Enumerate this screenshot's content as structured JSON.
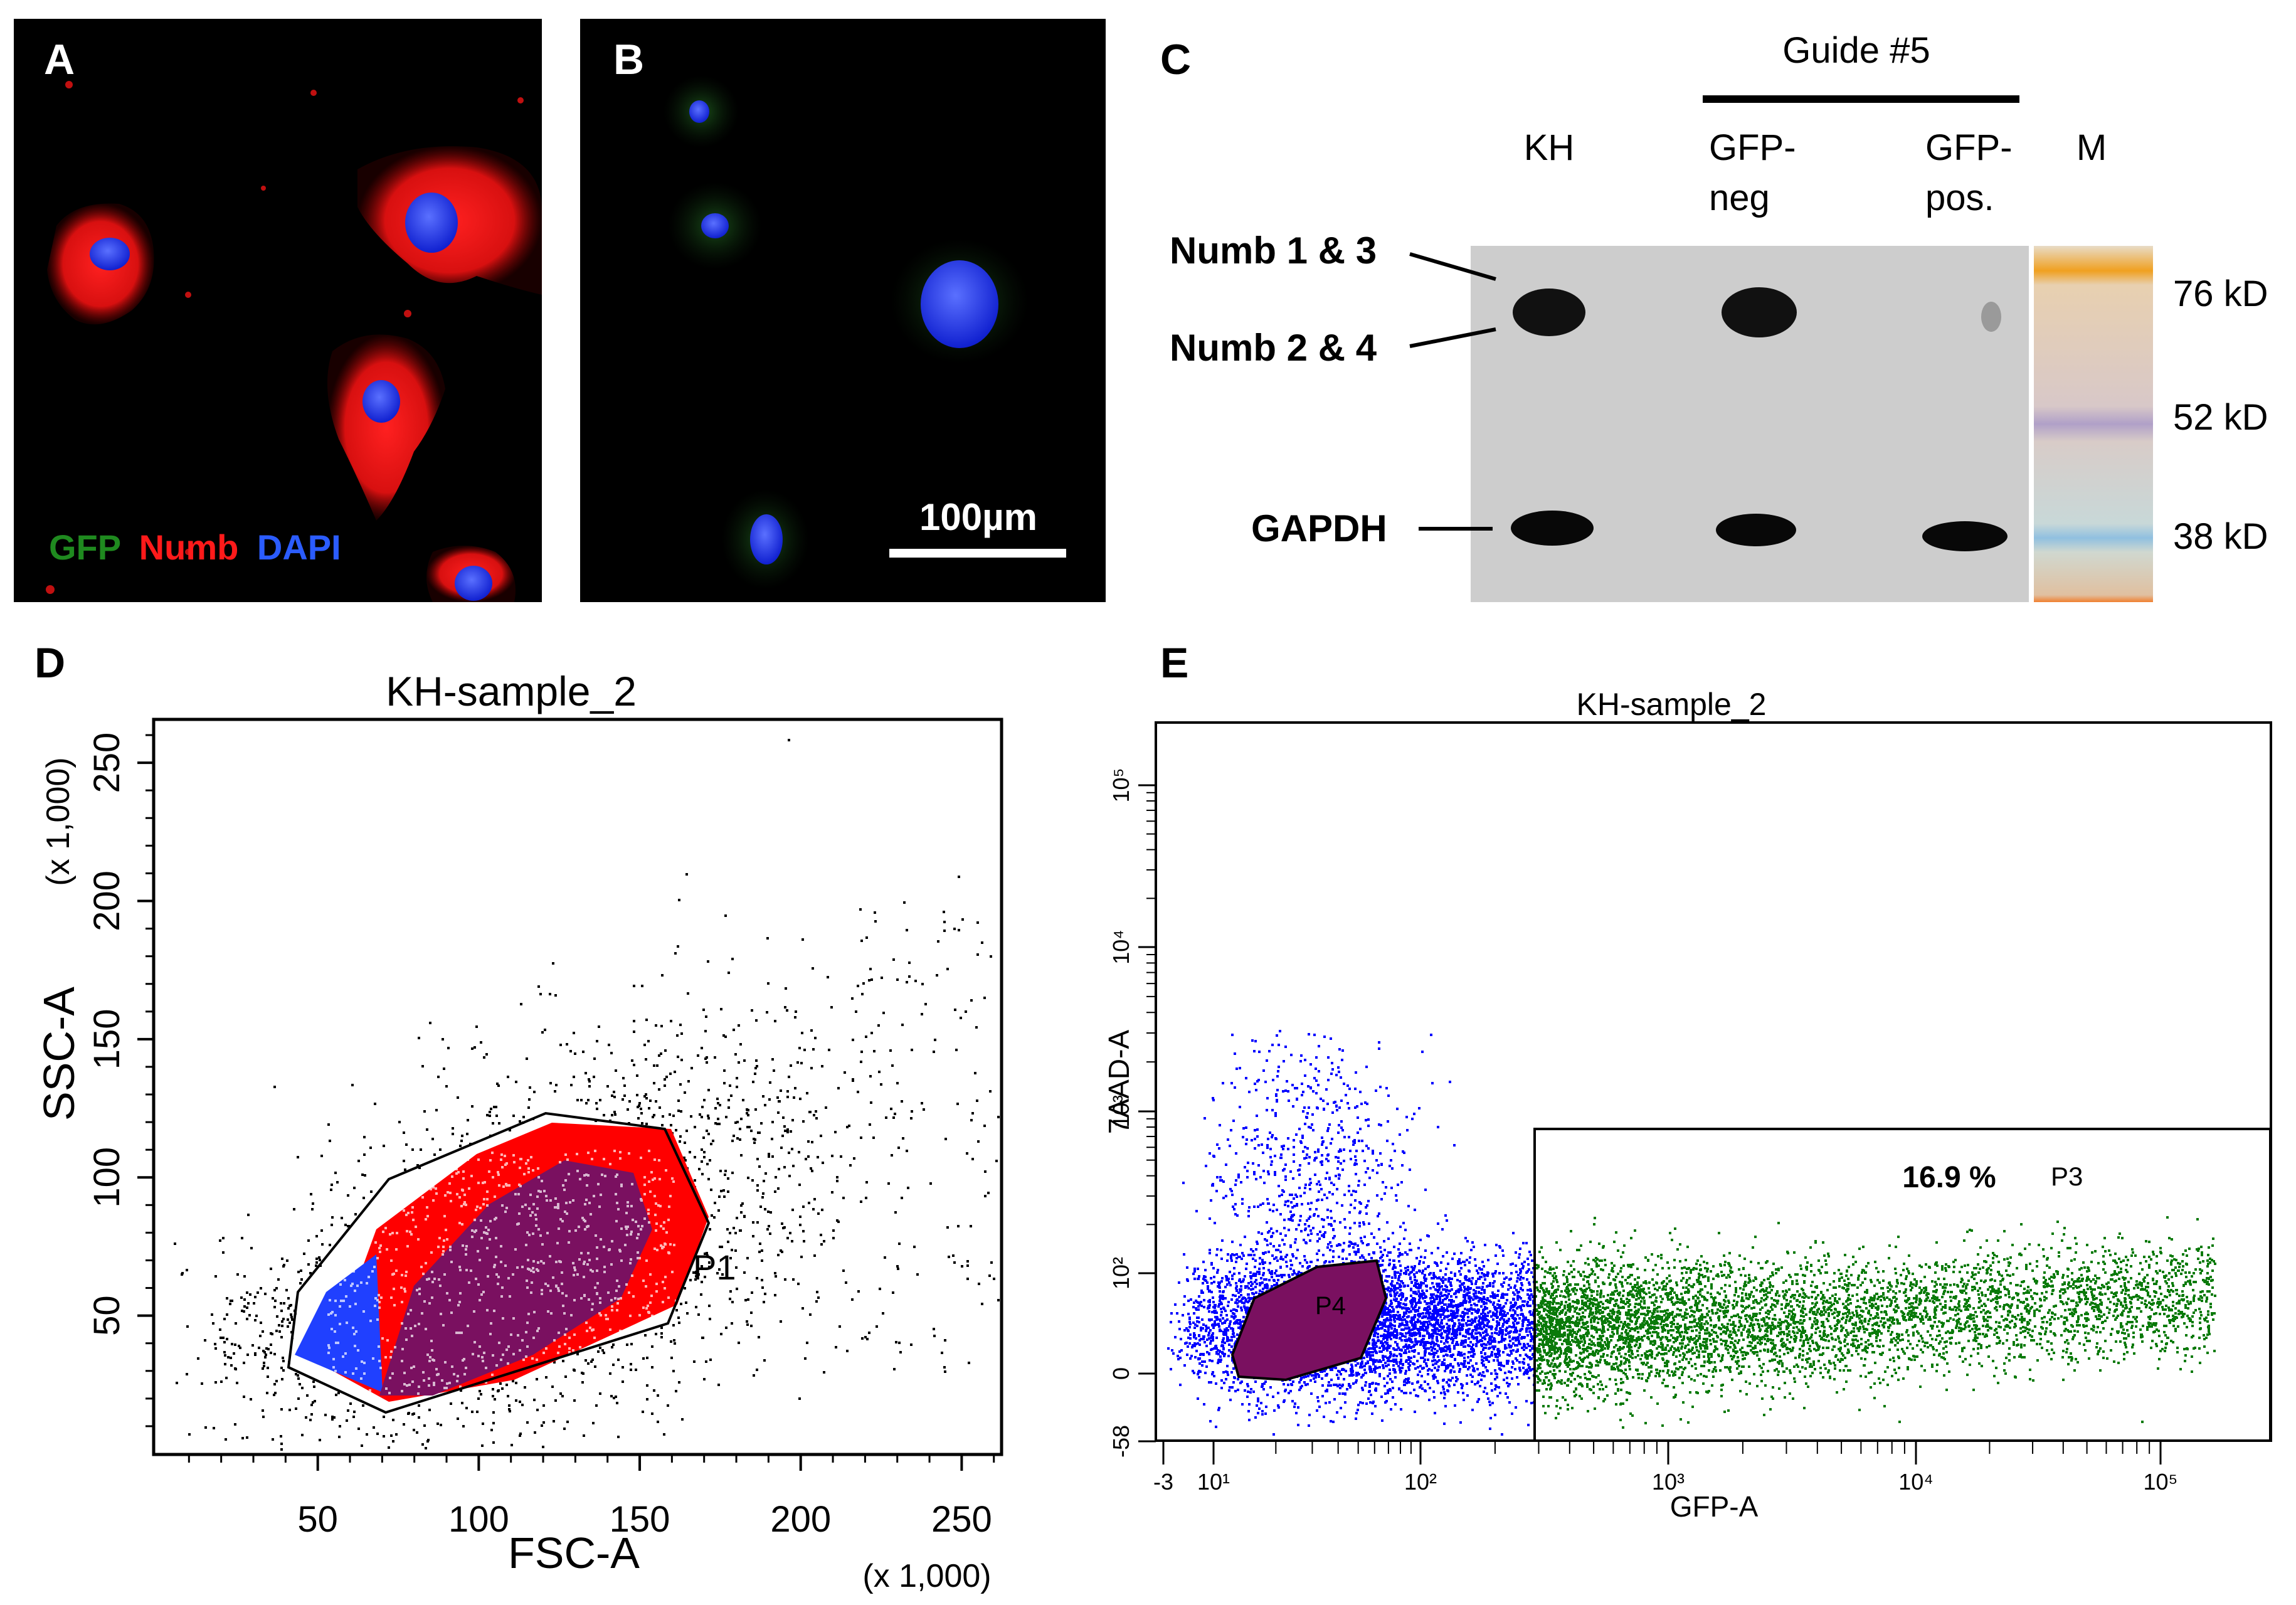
{
  "panels": {
    "a": {
      "letter": "A",
      "stain_labels": [
        "GFP",
        "Numb",
        "DAPI"
      ],
      "stain_colors": [
        "#1f8a1f",
        "#ff1a1a",
        "#2b5cff"
      ]
    },
    "b": {
      "letter": "B",
      "scale_bar_label": "100µm"
    },
    "c": {
      "letter": "C",
      "guide_label": "Guide #5",
      "lanes": [
        "KH",
        "GFP-\nneg",
        "GFP-\npos.",
        "M"
      ],
      "lane_line1": [
        "KH",
        "GFP-",
        "GFP-",
        "M"
      ],
      "lane_line2": [
        "",
        "neg",
        "pos.",
        ""
      ],
      "band_labels": [
        "Numb 1 & 3",
        "Numb 2 & 4",
        "GAPDH"
      ],
      "marker_labels": [
        "76 kD",
        "52 kD",
        "38 kD"
      ]
    },
    "d": {
      "letter": "D",
      "title": "KH-sample_2",
      "xlabel": "FSC-A",
      "ylabel": "SSC-A",
      "x_unit": "(x 1,000)",
      "y_unit": "(x 1,000)",
      "x_ticks": [
        50,
        100,
        150,
        200,
        250
      ],
      "y_ticks": [
        50,
        100,
        150,
        200,
        250
      ],
      "gate_label": "P1"
    },
    "e": {
      "letter": "E",
      "title": "KH-sample_2",
      "xlabel": "GFP-A",
      "ylabel": "7AAD-A",
      "x_ticks": [
        "-3",
        "10¹",
        "10²",
        "10³",
        "10⁴",
        "10⁵"
      ],
      "y_ticks": [
        "-58",
        "0",
        "10²",
        "10³",
        "10⁴",
        "10⁵"
      ],
      "gate_p4": "P4",
      "gate_p3": "P3",
      "p3_percent": "16.9 %"
    }
  },
  "colors": {
    "background": "#ffffff",
    "micrograph_bg": "#000000",
    "red_stain": "#e01010",
    "blue_nucleus": "#1e3cff",
    "green_stain": "#1f8a1f",
    "blot_bg": "#cfcfcf",
    "flow_black": "#000000",
    "flow_red": "#ff0000",
    "flow_blue": "#0000ff",
    "flow_purple": "#7a1060",
    "flow_green": "#0a7a0a"
  }
}
